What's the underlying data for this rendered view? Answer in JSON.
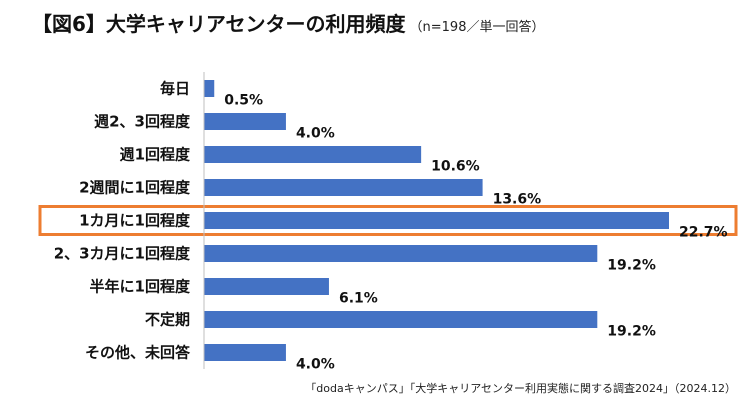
{
  "title": {
    "main": "【図6】大学キャリアセンターの利用頻度",
    "sub": "（n=198／単一回答）"
  },
  "source": "「dodaキャンパス」「大学キャリアセンター利用実態に関する調査2024」（2024.12）",
  "colors": {
    "bar": "#4472C4",
    "highlight": "#ED7D31",
    "axis": "#BFBFBF"
  },
  "chart_data": {
    "type": "bar",
    "orientation": "horizontal",
    "categories": [
      "毎日",
      "週2、3回程度",
      "週1回程度",
      "2週間に1回程度",
      "1カ月に1回程度",
      "2、3カ月に1回程度",
      "半年に1回程度",
      "不定期",
      "その他、未回答"
    ],
    "values": [
      0.5,
      4.0,
      10.6,
      13.6,
      22.7,
      19.2,
      6.1,
      19.2,
      4.0
    ],
    "value_labels": [
      "0.5%",
      "4.0%",
      "10.6%",
      "13.6%",
      "22.7%",
      "19.2%",
      "6.1%",
      "19.2%",
      "4.0%"
    ],
    "highlight_category": "1カ月に1回程度",
    "xlim": [
      0,
      22.7
    ],
    "grid": false,
    "legend": "none"
  }
}
